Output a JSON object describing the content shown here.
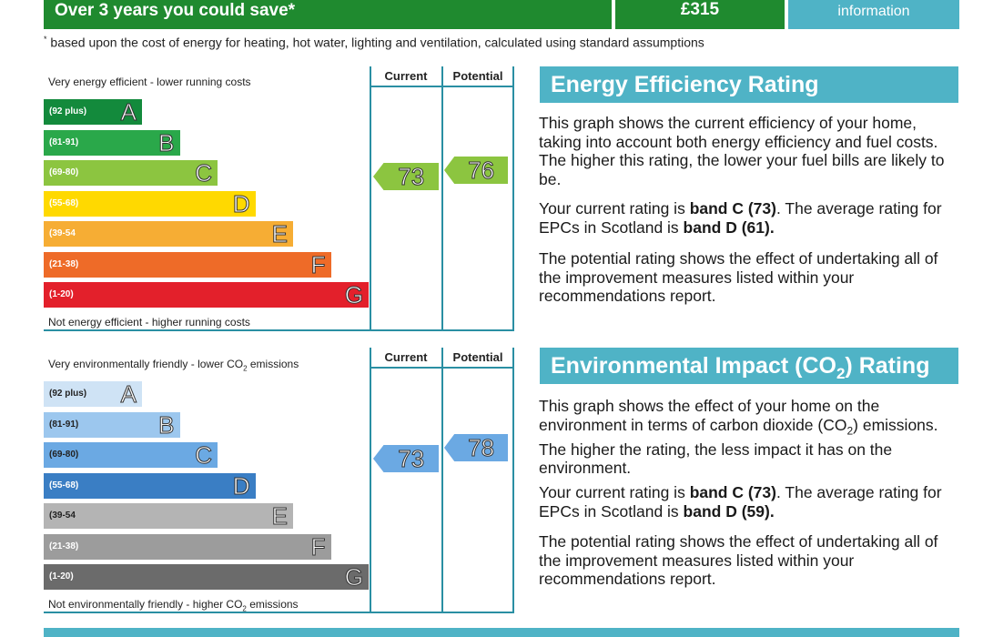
{
  "banner": {
    "savings_text": "Over 3 years you could save*",
    "savings_amount": "£315",
    "info_label": "information"
  },
  "footnote": {
    "marker": "*",
    "text": "based upon the cost of energy for heating, hot water, lighting and ventilation, calculated using standard assumptions"
  },
  "energy_chart": {
    "top_label": "Very energy efficient - lower running costs",
    "bottom_label": "Not energy efficient - higher running costs",
    "col_current": "Current",
    "col_potential": "Potential",
    "current_value": "73",
    "potential_value": "76",
    "bands": [
      {
        "range": "(92 plus)",
        "letter": "A",
        "color": "#138a3c"
      },
      {
        "range": "(81-91)",
        "letter": "B",
        "color": "#2aa84a"
      },
      {
        "range": "(69-80)",
        "letter": "C",
        "color": "#8cc540"
      },
      {
        "range": "(55-68)",
        "letter": "D",
        "color": "#ffd900"
      },
      {
        "range": "(39-54",
        "letter": "E",
        "color": "#f6ad34"
      },
      {
        "range": "(21-38)",
        "letter": "F",
        "color": "#ee6b28"
      },
      {
        "range": "(1-20)",
        "letter": "G",
        "color": "#e3202b"
      }
    ],
    "current_color": "#8cc540",
    "potential_color": "#8cc540"
  },
  "env_chart": {
    "top_label_pre": "Very environmentally friendly - lower CO",
    "top_label_sub": "2",
    "top_label_post": " emissions",
    "bottom_label_pre": "Not environmentally friendly - higher CO",
    "bottom_label_sub": "2",
    "bottom_label_post": " emissions",
    "col_current": "Current",
    "col_potential": "Potential",
    "current_value": "73",
    "potential_value": "78",
    "bands": [
      {
        "range": "(92 plus)",
        "letter": "A",
        "color": "#cfe3f5",
        "text_color": "#222"
      },
      {
        "range": "(81-91)",
        "letter": "B",
        "color": "#9cc7ee",
        "text_color": "#222"
      },
      {
        "range": "(69-80)",
        "letter": "C",
        "color": "#6ba9e3",
        "text_color": "#222"
      },
      {
        "range": "(55-68)",
        "letter": "D",
        "color": "#3a7ec4",
        "text_color": "#fff"
      },
      {
        "range": "(39-54",
        "letter": "E",
        "color": "#b4b4b4",
        "text_color": "#222"
      },
      {
        "range": "(21-38)",
        "letter": "F",
        "color": "#9c9c9c",
        "text_color": "#fff"
      },
      {
        "range": "(1-20)",
        "letter": "G",
        "color": "#6b6b6b",
        "text_color": "#fff"
      }
    ],
    "current_color": "#6ba9e3",
    "potential_color": "#6ba9e3"
  },
  "energy_panel": {
    "title": "Energy Efficiency Rating",
    "p1": "This graph shows the current efficiency of your home, taking into account both energy efficiency and fuel costs. The higher this rating, the lower your fuel bills are likely to be.",
    "p2_pre": "Your current rating is ",
    "p2_bold1": "band C (73)",
    "p2_mid": ". The average rating for EPCs in Scotland is ",
    "p2_bold2": "band D (61).",
    "p3": "The potential rating shows the effect of undertaking all of the improvement measures listed within your recommendations report."
  },
  "env_panel": {
    "title_pre": "Environmental Impact (CO",
    "title_sub": "2",
    "title_post": ") Rating",
    "p1_pre": "This graph shows the effect of your home on the environment in terms of carbon dioxide (CO",
    "p1_sub": "2",
    "p1_post": ") emissions. The higher the rating, the less impact it has on the environment.",
    "p2_pre": "Your current rating is ",
    "p2_bold1": "band C (73)",
    "p2_mid": ". The average rating for EPCs in Scotland is ",
    "p2_bold2": "band D (59).",
    "p3": "The potential rating shows the effect of undertaking all of the improvement measures listed within your recommendations report."
  }
}
